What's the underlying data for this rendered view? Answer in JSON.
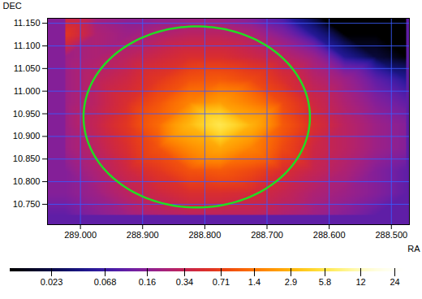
{
  "chart_data": {
    "type": "heatmap",
    "x_label": "RA",
    "y_label": "DEC",
    "xlim": [
      289.053,
      288.471
    ],
    "ylim": [
      10.705,
      11.161
    ],
    "xticks": [
      {
        "value": 289.0,
        "label": "289.000"
      },
      {
        "value": 288.9,
        "label": "288.900"
      },
      {
        "value": 288.8,
        "label": "288.800"
      },
      {
        "value": 288.7,
        "label": "288.700"
      },
      {
        "value": 288.6,
        "label": "288.600"
      },
      {
        "value": 288.5,
        "label": "288.500"
      }
    ],
    "yticks": [
      {
        "value": 10.75,
        "label": "10.750"
      },
      {
        "value": 10.8,
        "label": "10.800"
      },
      {
        "value": 10.85,
        "label": "10.850"
      },
      {
        "value": 10.9,
        "label": "10.900"
      },
      {
        "value": 10.95,
        "label": "10.950"
      },
      {
        "value": 11.0,
        "label": "11.000"
      },
      {
        "value": 11.05,
        "label": "11.050"
      },
      {
        "value": 11.1,
        "label": "11.100"
      },
      {
        "value": 11.15,
        "label": "11.150"
      }
    ],
    "grid": true,
    "x": [
      289.025,
      288.975,
      288.925,
      288.875,
      288.825,
      288.775,
      288.725,
      288.675,
      288.625,
      288.575,
      288.525,
      288.475
    ],
    "y": [
      10.725,
      10.775,
      10.825,
      10.875,
      10.925,
      10.975,
      11.025,
      11.075,
      11.125,
      11.175
    ],
    "cells": [
      [
        0.1,
        0.15,
        0.2,
        0.25,
        0.3,
        0.3,
        0.3,
        0.25,
        0.2,
        0.15,
        0.1,
        0.1
      ],
      [
        0.15,
        0.2,
        0.3,
        0.4,
        0.5,
        0.5,
        0.45,
        0.35,
        0.25,
        0.2,
        0.15,
        0.1
      ],
      [
        0.15,
        0.25,
        0.4,
        0.6,
        0.9,
        1.0,
        0.8,
        0.5,
        0.35,
        0.25,
        0.15,
        0.1
      ],
      [
        0.2,
        0.3,
        0.5,
        0.9,
        1.8,
        2.5,
        1.6,
        0.8,
        0.4,
        0.3,
        0.2,
        0.15
      ],
      [
        0.2,
        0.35,
        0.6,
        1.2,
        3.0,
        6.0,
        2.8,
        1.0,
        0.5,
        0.3,
        0.2,
        0.15
      ],
      [
        0.2,
        0.3,
        0.5,
        0.9,
        1.6,
        2.2,
        1.5,
        0.8,
        0.4,
        0.25,
        0.15,
        0.1
      ],
      [
        0.2,
        0.3,
        0.4,
        0.6,
        0.9,
        1.0,
        0.8,
        0.5,
        0.3,
        0.2,
        0.1,
        0.05
      ],
      [
        0.2,
        0.25,
        0.3,
        0.4,
        0.5,
        0.5,
        0.4,
        0.3,
        0.2,
        0.05,
        0.02,
        0.01
      ],
      [
        0.6,
        0.25,
        0.2,
        0.25,
        0.3,
        0.3,
        0.25,
        0.15,
        0.05,
        0.01,
        0.01,
        0.01
      ],
      [
        0.3,
        0.2,
        0.15,
        0.15,
        0.15,
        0.15,
        0.1,
        0.05,
        0.01,
        0.01,
        0.01,
        0.01
      ]
    ],
    "colorbar": {
      "log": true,
      "range": [
        0.01,
        30
      ],
      "ticks": [
        0.023,
        0.068,
        0.16,
        0.34,
        0.71,
        1.4,
        2.9,
        5.8,
        12,
        24
      ]
    },
    "circle": {
      "center": [
        288.813,
        10.943
      ],
      "radius": [
        0.182,
        0.2
      ],
      "color": "#22dd22"
    }
  }
}
